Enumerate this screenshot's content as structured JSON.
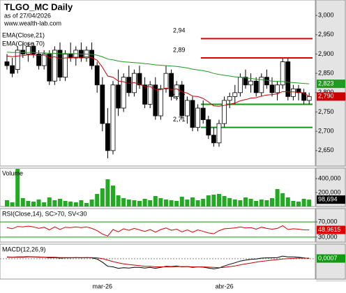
{
  "chart_data": [
    {
      "type": "candlestick",
      "title": "TLGO_MC Daily",
      "subtitle": "as of 27/04/2026",
      "source": "www.wealth-lab.com",
      "categories": [
        null,
        null,
        null,
        null,
        null,
        null,
        null,
        null,
        null,
        null,
        null,
        null,
        null,
        null,
        null,
        null,
        null,
        null,
        "mar-26",
        null,
        null,
        null,
        null,
        null,
        null,
        null,
        null,
        null,
        null,
        null,
        null,
        null,
        null,
        null,
        null,
        null,
        null,
        null,
        null,
        null,
        null,
        "abr-26",
        null,
        null,
        null,
        null,
        null,
        null,
        null,
        null,
        null,
        null,
        null,
        null,
        null,
        null,
        null,
        null
      ],
      "open": [
        2.88,
        2.87,
        2.86,
        2.91,
        2.9,
        2.92,
        2.9,
        2.87,
        2.9,
        2.83,
        2.91,
        2.84,
        2.9,
        2.89,
        2.91,
        2.89,
        2.91,
        2.87,
        2.82,
        2.72,
        2.65,
        2.82,
        2.76,
        2.84,
        2.8,
        2.85,
        2.82,
        2.77,
        2.82,
        2.74,
        2.81,
        2.85,
        2.79,
        2.82,
        2.74,
        2.78,
        2.71,
        2.76,
        2.73,
        2.69,
        2.67,
        2.72,
        2.78,
        2.79,
        2.8,
        2.84,
        2.82,
        2.83,
        2.8,
        2.84,
        2.82,
        2.8,
        2.82,
        2.88,
        2.79,
        2.81,
        2.8,
        2.78
      ],
      "high": [
        2.9,
        2.89,
        2.92,
        2.93,
        2.93,
        2.93,
        2.91,
        2.91,
        2.91,
        2.92,
        2.93,
        2.91,
        2.93,
        2.92,
        2.93,
        2.92,
        2.93,
        2.88,
        2.84,
        2.76,
        2.83,
        2.86,
        2.85,
        2.87,
        2.86,
        2.87,
        2.84,
        2.83,
        2.84,
        2.82,
        2.87,
        2.86,
        2.83,
        2.83,
        2.79,
        2.79,
        2.77,
        2.78,
        2.74,
        2.71,
        2.73,
        2.79,
        2.8,
        2.82,
        2.85,
        2.86,
        2.85,
        2.84,
        2.85,
        2.86,
        2.84,
        2.83,
        2.89,
        2.89,
        2.82,
        2.82,
        2.81,
        2.8
      ],
      "low": [
        2.86,
        2.84,
        2.85,
        2.89,
        2.88,
        2.89,
        2.86,
        2.86,
        2.82,
        2.82,
        2.83,
        2.83,
        2.88,
        2.87,
        2.88,
        2.88,
        2.86,
        2.8,
        2.7,
        2.63,
        2.64,
        2.74,
        2.75,
        2.79,
        2.79,
        2.81,
        2.76,
        2.76,
        2.73,
        2.73,
        2.8,
        2.78,
        2.78,
        2.73,
        2.72,
        2.7,
        2.7,
        2.72,
        2.68,
        2.66,
        2.66,
        2.71,
        2.76,
        2.77,
        2.79,
        2.81,
        2.8,
        2.79,
        2.79,
        2.81,
        2.79,
        2.78,
        2.81,
        2.78,
        2.78,
        2.78,
        2.77,
        2.77
      ],
      "close": [
        2.87,
        2.85,
        2.91,
        2.9,
        2.92,
        2.9,
        2.87,
        2.9,
        2.83,
        2.91,
        2.84,
        2.9,
        2.89,
        2.91,
        2.89,
        2.91,
        2.87,
        2.82,
        2.72,
        2.65,
        2.82,
        2.76,
        2.84,
        2.8,
        2.85,
        2.82,
        2.77,
        2.82,
        2.74,
        2.81,
        2.85,
        2.79,
        2.82,
        2.74,
        2.78,
        2.71,
        2.76,
        2.73,
        2.69,
        2.67,
        2.72,
        2.78,
        2.79,
        2.8,
        2.84,
        2.82,
        2.83,
        2.8,
        2.84,
        2.82,
        2.8,
        2.82,
        2.88,
        2.79,
        2.81,
        2.8,
        2.78,
        2.79
      ],
      "series": [
        {
          "name": "EMA(Close,21)",
          "color": "#cc0000",
          "values": [
            2.895,
            2.893,
            2.895,
            2.896,
            2.898,
            2.898,
            2.896,
            2.897,
            2.891,
            2.893,
            2.888,
            2.89,
            2.89,
            2.892,
            2.891,
            2.893,
            2.891,
            2.884,
            2.866,
            2.843,
            2.84,
            2.83,
            2.828,
            2.824,
            2.826,
            2.822,
            2.816,
            2.816,
            2.808,
            2.808,
            2.812,
            2.808,
            2.81,
            2.802,
            2.799,
            2.791,
            2.79,
            2.785,
            2.776,
            2.766,
            2.765,
            2.767,
            2.77,
            2.773,
            2.779,
            2.782,
            2.786,
            2.787,
            2.791,
            2.794,
            2.795,
            2.797,
            2.803,
            2.802,
            2.802,
            2.801,
            2.799,
            2.79
          ],
          "value_labels": [
            null,
            null,
            null,
            null,
            null,
            null,
            null,
            null,
            null,
            null,
            null,
            null,
            null,
            null,
            null,
            null,
            null,
            null,
            null,
            null,
            null,
            null,
            null,
            null,
            null,
            null,
            null,
            null,
            null,
            null,
            null,
            null,
            null,
            null,
            null,
            null,
            null,
            null,
            null,
            null,
            null,
            null,
            null,
            null,
            null,
            null,
            null,
            null,
            null,
            null,
            null,
            null,
            null,
            null,
            null,
            null,
            null,
            "2,790"
          ]
        },
        {
          "name": "EMA(Close,70)",
          "color": "#229922",
          "values": [
            2.905,
            2.904,
            2.904,
            2.904,
            2.904,
            2.904,
            2.903,
            2.903,
            2.902,
            2.902,
            2.901,
            2.901,
            2.901,
            2.901,
            2.9,
            2.9,
            2.899,
            2.897,
            2.893,
            2.887,
            2.885,
            2.882,
            2.88,
            2.879,
            2.878,
            2.877,
            2.875,
            2.874,
            2.872,
            2.871,
            2.87,
            2.869,
            2.868,
            2.866,
            2.864,
            2.861,
            2.859,
            2.857,
            2.854,
            2.85,
            2.847,
            2.845,
            2.843,
            2.841,
            2.84,
            2.838,
            2.837,
            2.835,
            2.834,
            2.832,
            2.83,
            2.829,
            2.829,
            2.827,
            2.826,
            2.825,
            2.824,
            2.823
          ],
          "value_labels": [
            null,
            null,
            null,
            null,
            null,
            null,
            null,
            null,
            null,
            null,
            null,
            null,
            null,
            null,
            null,
            null,
            null,
            null,
            null,
            null,
            null,
            null,
            null,
            null,
            null,
            null,
            null,
            null,
            null,
            null,
            null,
            null,
            null,
            null,
            null,
            null,
            null,
            null,
            null,
            null,
            null,
            null,
            null,
            null,
            null,
            null,
            null,
            null,
            null,
            null,
            null,
            null,
            null,
            null,
            null,
            null,
            null,
            "2,823"
          ]
        }
      ],
      "levels": [
        {
          "value": 2.94,
          "label": "2,94",
          "color": "#dd0000"
        },
        {
          "value": 2.89,
          "label": "2,89",
          "color": "#dd0000"
        },
        {
          "value": 2.77,
          "label": "2,77",
          "color": "#119911"
        },
        {
          "value": 2.71,
          "label": "2,71",
          "color": "#119911"
        }
      ],
      "ylim": [
        2.61,
        3.04
      ],
      "yticks": [
        {
          "value": 2.65,
          "label": "2,650"
        },
        {
          "value": 2.7,
          "label": "2,700"
        },
        {
          "value": 2.75,
          "label": "2,750"
        },
        {
          "value": 2.8,
          "label": "2,800"
        },
        {
          "value": 2.85,
          "label": "2,850"
        },
        {
          "value": 2.9,
          "label": "2,900"
        },
        {
          "value": 2.95,
          "label": "2,950"
        },
        {
          "value": 3.0,
          "label": "3,000"
        }
      ],
      "grid": false
    },
    {
      "type": "bar",
      "title": "Volume",
      "color": "#22aa22",
      "values": [
        90000,
        60000,
        540000,
        120000,
        80000,
        70000,
        100000,
        60000,
        130000,
        90000,
        110000,
        80000,
        70000,
        60000,
        90000,
        50000,
        100000,
        180000,
        260000,
        390000,
        300000,
        160000,
        120000,
        100000,
        90000,
        80000,
        110000,
        90000,
        150000,
        120000,
        100000,
        90000,
        80000,
        140000,
        100000,
        130000,
        90000,
        110000,
        160000,
        170000,
        180000,
        150000,
        120000,
        100000,
        90000,
        130000,
        110000,
        80000,
        100000,
        90000,
        120000,
        250000,
        190000,
        130000,
        80000,
        70000,
        110000,
        98694
      ],
      "value_labels": [
        null,
        null,
        null,
        null,
        null,
        null,
        null,
        null,
        null,
        null,
        null,
        null,
        null,
        null,
        null,
        null,
        null,
        null,
        null,
        null,
        null,
        null,
        null,
        null,
        null,
        null,
        null,
        null,
        null,
        null,
        null,
        null,
        null,
        null,
        null,
        null,
        null,
        null,
        null,
        null,
        null,
        null,
        null,
        null,
        null,
        null,
        null,
        null,
        null,
        null,
        null,
        null,
        null,
        null,
        null,
        null,
        null,
        "98,694"
      ],
      "ylim": [
        0,
        550000
      ],
      "yticks": [
        {
          "value": 200000,
          "label": "200,000"
        },
        {
          "value": 400000,
          "label": "400,000"
        }
      ],
      "grid": false
    },
    {
      "type": "line",
      "title": "RSI(Close,14), SC>70, SV<30",
      "series": [
        {
          "color": "#dd0000",
          "values": [
            55,
            52,
            58,
            57,
            59,
            57,
            53,
            56,
            49,
            57,
            50,
            56,
            55,
            57,
            55,
            57,
            53,
            47,
            38,
            33,
            50,
            44,
            52,
            48,
            53,
            49,
            45,
            50,
            43,
            50,
            54,
            48,
            51,
            44,
            49,
            43,
            49,
            45,
            41,
            39,
            47,
            52,
            53,
            54,
            57,
            54,
            55,
            51,
            56,
            53,
            51,
            53,
            60,
            50,
            52,
            51,
            49,
            48.9615
          ],
          "value_labels": [
            null,
            null,
            null,
            null,
            null,
            null,
            null,
            null,
            null,
            null,
            null,
            null,
            null,
            null,
            null,
            null,
            null,
            null,
            null,
            null,
            null,
            null,
            null,
            null,
            null,
            null,
            null,
            null,
            null,
            null,
            null,
            null,
            null,
            null,
            null,
            null,
            null,
            null,
            null,
            null,
            null,
            null,
            null,
            null,
            null,
            null,
            null,
            null,
            null,
            null,
            null,
            null,
            null,
            null,
            null,
            null,
            null,
            "48,9615"
          ]
        }
      ],
      "ylim": [
        17,
        105
      ],
      "yticks": [
        {
          "value": 30,
          "label": "30,000"
        },
        {
          "value": 70,
          "label": "70,000"
        }
      ],
      "grid": true,
      "grid_color": "#119911"
    },
    {
      "type": "line",
      "title": "MACD(12,26,9)",
      "series": [
        {
          "color": "#000000",
          "values": [
            0.006,
            0.005,
            0.006,
            0.006,
            0.007,
            0.006,
            0.005,
            0.005,
            0.003,
            0.004,
            0.002,
            0.003,
            0.003,
            0.004,
            0.003,
            0.004,
            0.003,
            -0.001,
            -0.012,
            -0.026,
            -0.028,
            -0.033,
            -0.031,
            -0.032,
            -0.03,
            -0.03,
            -0.032,
            -0.03,
            -0.033,
            -0.03,
            -0.026,
            -0.027,
            -0.025,
            -0.028,
            -0.027,
            -0.03,
            -0.028,
            -0.029,
            -0.032,
            -0.035,
            -0.032,
            -0.025,
            -0.019,
            -0.014,
            -0.008,
            -0.005,
            -0.002,
            -0.001,
            0.002,
            0.003,
            0.003,
            0.004,
            0.009,
            0.006,
            0.006,
            0.005,
            0.003,
            0.0007
          ],
          "value_labels": [
            null,
            null,
            null,
            null,
            null,
            null,
            null,
            null,
            null,
            null,
            null,
            null,
            null,
            null,
            null,
            null,
            null,
            null,
            null,
            null,
            null,
            null,
            null,
            null,
            null,
            null,
            null,
            null,
            null,
            null,
            null,
            null,
            null,
            null,
            null,
            null,
            null,
            null,
            null,
            null,
            null,
            null,
            null,
            null,
            null,
            null,
            null,
            null,
            null,
            null,
            null,
            null,
            null,
            null,
            null,
            null,
            null,
            "0,0007"
          ]
        },
        {
          "color": "#cc0000",
          "values": [
            0.005,
            0.005,
            0.005,
            0.005,
            0.006,
            0.006,
            0.006,
            0.005,
            0.005,
            0.005,
            0.004,
            0.004,
            0.004,
            0.004,
            0.004,
            0.004,
            0.004,
            0.003,
            0.0,
            -0.005,
            -0.01,
            -0.014,
            -0.018,
            -0.02,
            -0.022,
            -0.024,
            -0.026,
            -0.026,
            -0.028,
            -0.028,
            -0.028,
            -0.028,
            -0.027,
            -0.027,
            -0.027,
            -0.028,
            -0.028,
            -0.028,
            -0.029,
            -0.03,
            -0.031,
            -0.03,
            -0.027,
            -0.025,
            -0.021,
            -0.018,
            -0.015,
            -0.012,
            -0.009,
            -0.007,
            -0.005,
            -0.003,
            -0.001,
            0.0,
            0.001,
            0.002,
            0.002,
            0.002
          ]
        }
      ],
      "label_color": "#119911",
      "ylim": [
        -0.07,
        0.05
      ],
      "yticks": [],
      "grid": false
    }
  ]
}
